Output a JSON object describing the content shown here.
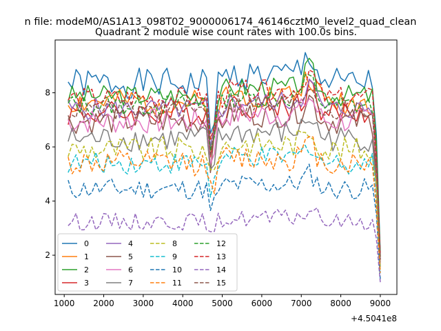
{
  "chart_data": {
    "type": "line",
    "suptitle": "n file: modeM0/AS1A13_098T02_9000006174_46146cztM0_level2_quad_clean",
    "title": "Quadrant 2 module wise count rates with 100.0s bins.",
    "xlabel": "",
    "ylabel": "",
    "offset_label": "+4.5041e8",
    "xlim": [
      770,
      9420
    ],
    "ylim": [
      0.55,
      9.95
    ],
    "xticks": [
      1000,
      2000,
      3000,
      4000,
      5000,
      6000,
      7000,
      8000,
      9000
    ],
    "yticks": [
      2,
      4,
      6,
      8
    ],
    "legend_position": "lower-left",
    "series": [
      {
        "name": "0",
        "color": "#1f77b4",
        "dash": "solid",
        "level": 8.35,
        "amp": 0.35,
        "seed": 1
      },
      {
        "name": "1",
        "color": "#ff7f0e",
        "dash": "solid",
        "level": 7.65,
        "amp": 0.3,
        "seed": 2
      },
      {
        "name": "2",
        "color": "#2ca02c",
        "dash": "solid",
        "level": 7.9,
        "amp": 0.25,
        "seed": 3
      },
      {
        "name": "3",
        "color": "#d62728",
        "dash": "solid",
        "level": 7.25,
        "amp": 0.3,
        "seed": 4
      },
      {
        "name": "4",
        "color": "#9467bd",
        "dash": "solid",
        "level": 7.4,
        "amp": 0.25,
        "seed": 5
      },
      {
        "name": "5",
        "color": "#8c564b",
        "dash": "solid",
        "level": 6.95,
        "amp": 0.3,
        "seed": 6
      },
      {
        "name": "6",
        "color": "#e377c2",
        "dash": "solid",
        "level": 6.95,
        "amp": 0.3,
        "seed": 7
      },
      {
        "name": "7",
        "color": "#7f7f7f",
        "dash": "solid",
        "level": 6.3,
        "amp": 0.3,
        "seed": 8
      },
      {
        "name": "8",
        "color": "#bcbd22",
        "dash": "dashed",
        "level": 5.9,
        "amp": 0.3,
        "seed": 9
      },
      {
        "name": "9",
        "color": "#17becf",
        "dash": "dashed",
        "level": 5.4,
        "amp": 0.25,
        "seed": 10
      },
      {
        "name": "10",
        "color": "#1f77b4",
        "dash": "dashed",
        "level": 4.45,
        "amp": 0.25,
        "seed": 11
      },
      {
        "name": "11",
        "color": "#ff7f0e",
        "dash": "dashed",
        "level": 5.4,
        "amp": 0.3,
        "seed": 12
      },
      {
        "name": "12",
        "color": "#2ca02c",
        "dash": "dashed",
        "level": 7.55,
        "amp": 0.25,
        "seed": 13
      },
      {
        "name": "13",
        "color": "#d62728",
        "dash": "dashed",
        "level": 7.8,
        "amp": 0.25,
        "seed": 14
      },
      {
        "name": "14",
        "color": "#9467bd",
        "dash": "dashed",
        "level": 3.25,
        "amp": 0.2,
        "seed": 15
      },
      {
        "name": "15",
        "color": "#8c564b",
        "dash": "dashed",
        "level": 7.35,
        "amp": 0.25,
        "seed": 16
      }
    ]
  }
}
